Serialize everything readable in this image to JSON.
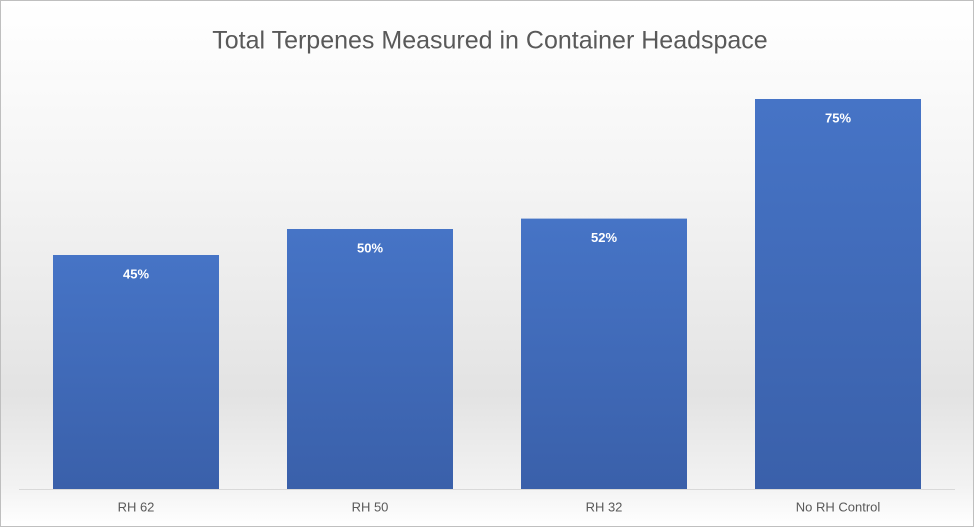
{
  "chart_data": {
    "type": "bar",
    "title": "Total Terpenes Measured in Container Headspace",
    "categories": [
      "RH 62",
      "RH 50",
      "RH 32",
      "No RH Control"
    ],
    "values": [
      45,
      50,
      52,
      75
    ],
    "value_labels": [
      "45%",
      "50%",
      "52%",
      "75%"
    ],
    "color": "#4472c4"
  }
}
